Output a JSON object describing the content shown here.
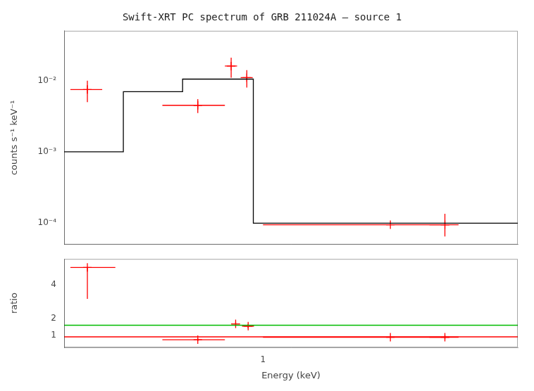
{
  "chart_data": [
    {
      "type": "line",
      "title": "Swift-XRT PC spectrum of GRB 211024A – source 1",
      "ylabel": "counts s⁻¹ keV⁻¹",
      "log": true,
      "grid": false,
      "tick_labels": "y",
      "xlim": [
        0.18,
        9.0
      ],
      "xticks": [
        1
      ],
      "ylim": [
        5e-05,
        0.05
      ],
      "yticks": [
        {
          "value": 0.0001,
          "label": "10⁻⁴"
        },
        {
          "value": 0.001,
          "label": "10⁻³"
        },
        {
          "value": 0.01,
          "label": "10⁻²"
        }
      ],
      "series": [
        {
          "type": "line",
          "color": "#000000",
          "x": [
            0.18,
            0.3,
            0.3,
            0.5,
            0.5,
            0.92,
            0.92,
            9.0
          ],
          "values": [
            0.001,
            0.001,
            0.007,
            0.007,
            0.0105,
            0.0105,
            0.0001,
            0.0001
          ]
        },
        {
          "type": "scatter",
          "color": "#ff0000",
          "marker": "plus",
          "x": [
            0.22,
            0.57,
            0.76,
            0.87,
            3.0,
            4.8
          ],
          "values": [
            0.0075,
            0.0045,
            0.016,
            0.011,
            9.5e-05,
            9.5e-05
          ],
          "xerr_lo": [
            0.03,
            0.15,
            0.04,
            0.045,
            2.0,
            0.6
          ],
          "xerr_hi": [
            0.03,
            0.15,
            0.04,
            0.045,
            2.0,
            0.6
          ],
          "yerr_lo": [
            0.0025,
            0.001,
            0.005,
            0.003,
            0,
            3e-05
          ],
          "yerr_hi": [
            0.0025,
            0.001,
            0.005,
            0.003,
            0,
            4e-05
          ]
        }
      ]
    },
    {
      "type": "line",
      "xlabel": "Energy (keV)",
      "ylabel": "ratio",
      "log": "x",
      "grid": false,
      "xlim": [
        0.18,
        9.0
      ],
      "xticks": [
        1
      ],
      "ylim": [
        0.3,
        5.5
      ],
      "yticks": [
        1,
        2,
        4
      ],
      "series": [
        {
          "type": "hline",
          "color": "#00bb00",
          "values": [
            1.6
          ]
        },
        {
          "type": "hline",
          "color": "#ff0000",
          "values": [
            0.92
          ]
        },
        {
          "type": "scatter",
          "color": "#ff0000",
          "marker": "plus",
          "x": [
            0.22,
            0.57,
            0.79,
            0.88,
            3.0,
            4.8
          ],
          "values": [
            5.0,
            0.75,
            1.68,
            1.55,
            0.9,
            0.9
          ],
          "xerr_lo": [
            0.03,
            0.15,
            0.03,
            0.045,
            2.0,
            0.6
          ],
          "xerr_hi": [
            0.06,
            0.15,
            0.03,
            0.045,
            2.0,
            0.6
          ],
          "yerr_lo": [
            1.85,
            0.08,
            0.12,
            0.12,
            0,
            0.12
          ],
          "yerr_hi": [
            0.0,
            0.08,
            0.12,
            0.12,
            0,
            0.12
          ]
        }
      ]
    }
  ]
}
